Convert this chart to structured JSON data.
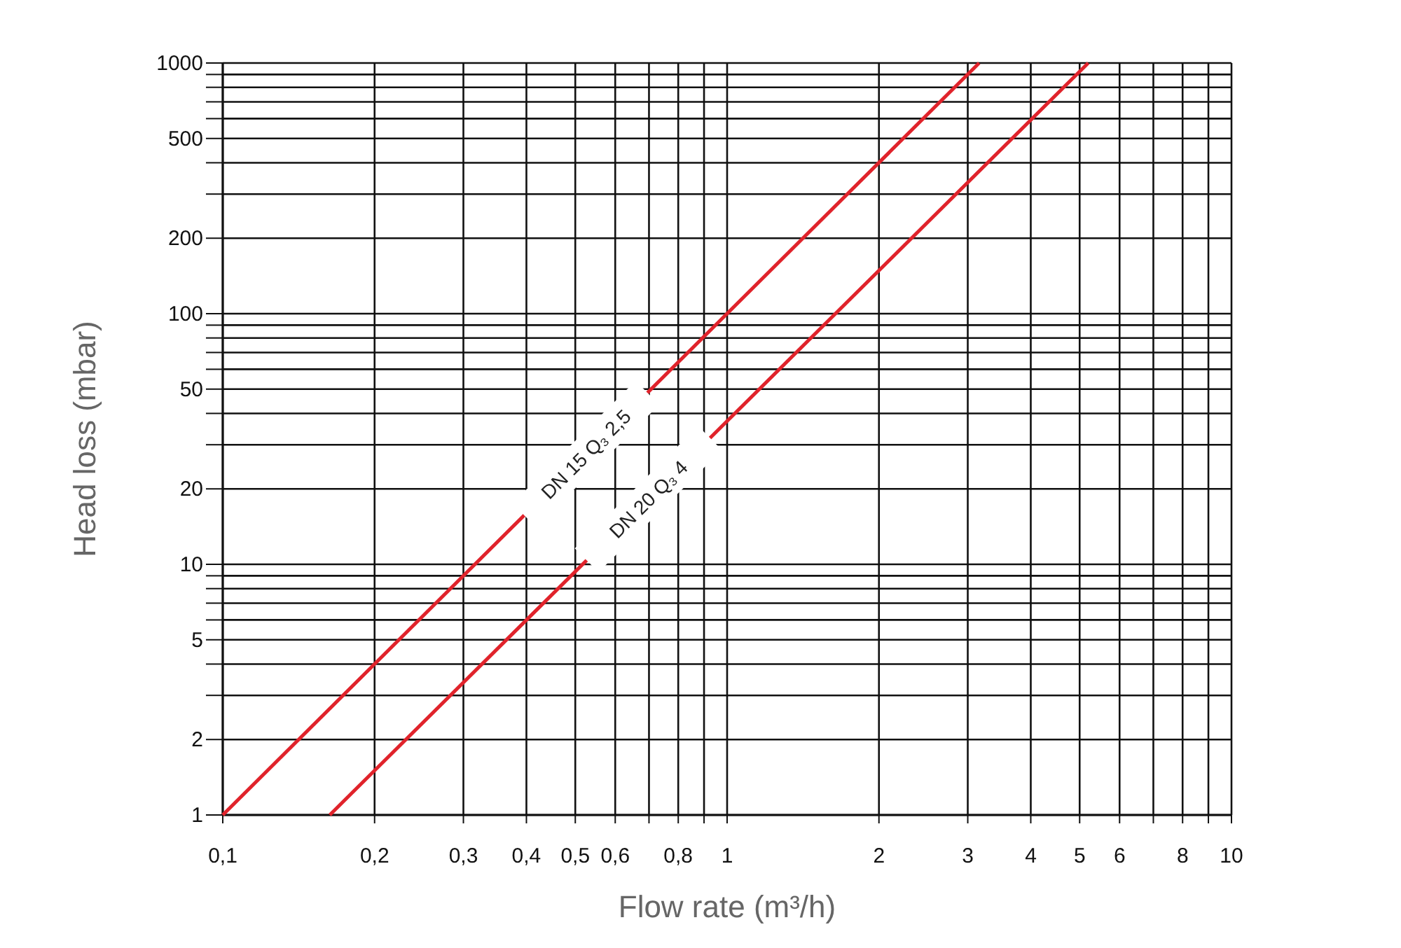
{
  "chart_data": {
    "type": "line",
    "xlabel": "Flow rate (m³/h)",
    "ylabel": "Head loss (mbar)",
    "log": "xy",
    "grid": true,
    "marker": "none",
    "line_style": "solid",
    "xlim": [
      0.1,
      10
    ],
    "ylim": [
      1,
      1000
    ],
    "xticks": [
      {
        "value": 0.1,
        "label": "0,1"
      },
      {
        "value": 0.2,
        "label": "0,2"
      },
      {
        "value": 0.3,
        "label": "0,3"
      },
      {
        "value": 0.4,
        "label": "0,4"
      },
      {
        "value": 0.5,
        "label": "0,5"
      },
      {
        "value": 0.6,
        "label": "0,6"
      },
      {
        "value": 0.7,
        "label": null
      },
      {
        "value": 0.8,
        "label": "0,8"
      },
      {
        "value": 0.9,
        "label": null
      },
      1,
      2,
      3,
      4,
      5,
      6,
      {
        "value": 7,
        "label": null
      },
      8,
      {
        "value": 9,
        "label": null
      },
      10
    ],
    "yticks": [
      1,
      2,
      {
        "value": 3,
        "label": null
      },
      {
        "value": 4,
        "label": null
      },
      5,
      {
        "value": 6,
        "label": null
      },
      {
        "value": 7,
        "label": null
      },
      {
        "value": 8,
        "label": null
      },
      {
        "value": 9,
        "label": null
      },
      10,
      20,
      {
        "value": 30,
        "label": null
      },
      {
        "value": 40,
        "label": null
      },
      50,
      {
        "value": 60,
        "label": null
      },
      {
        "value": 70,
        "label": null
      },
      {
        "value": 80,
        "label": null
      },
      {
        "value": 90,
        "label": null
      },
      100,
      200,
      {
        "value": 300,
        "label": null
      },
      {
        "value": 400,
        "label": null
      },
      500,
      {
        "value": 600,
        "label": null
      },
      {
        "value": 700,
        "label": null
      },
      {
        "value": 800,
        "label": null
      },
      {
        "value": 900,
        "label": null
      },
      1000
    ],
    "series": [
      {
        "name": "DN 15 Q₃ 2,5",
        "color": "#e0232b",
        "x": [
          0.1,
          3.16
        ],
        "values": [
          1,
          1000
        ]
      },
      {
        "name": "DN 20 Q₃ 4",
        "color": "#e0232b",
        "x": [
          0.163,
          5.2
        ],
        "values": [
          1,
          1000
        ]
      }
    ]
  }
}
